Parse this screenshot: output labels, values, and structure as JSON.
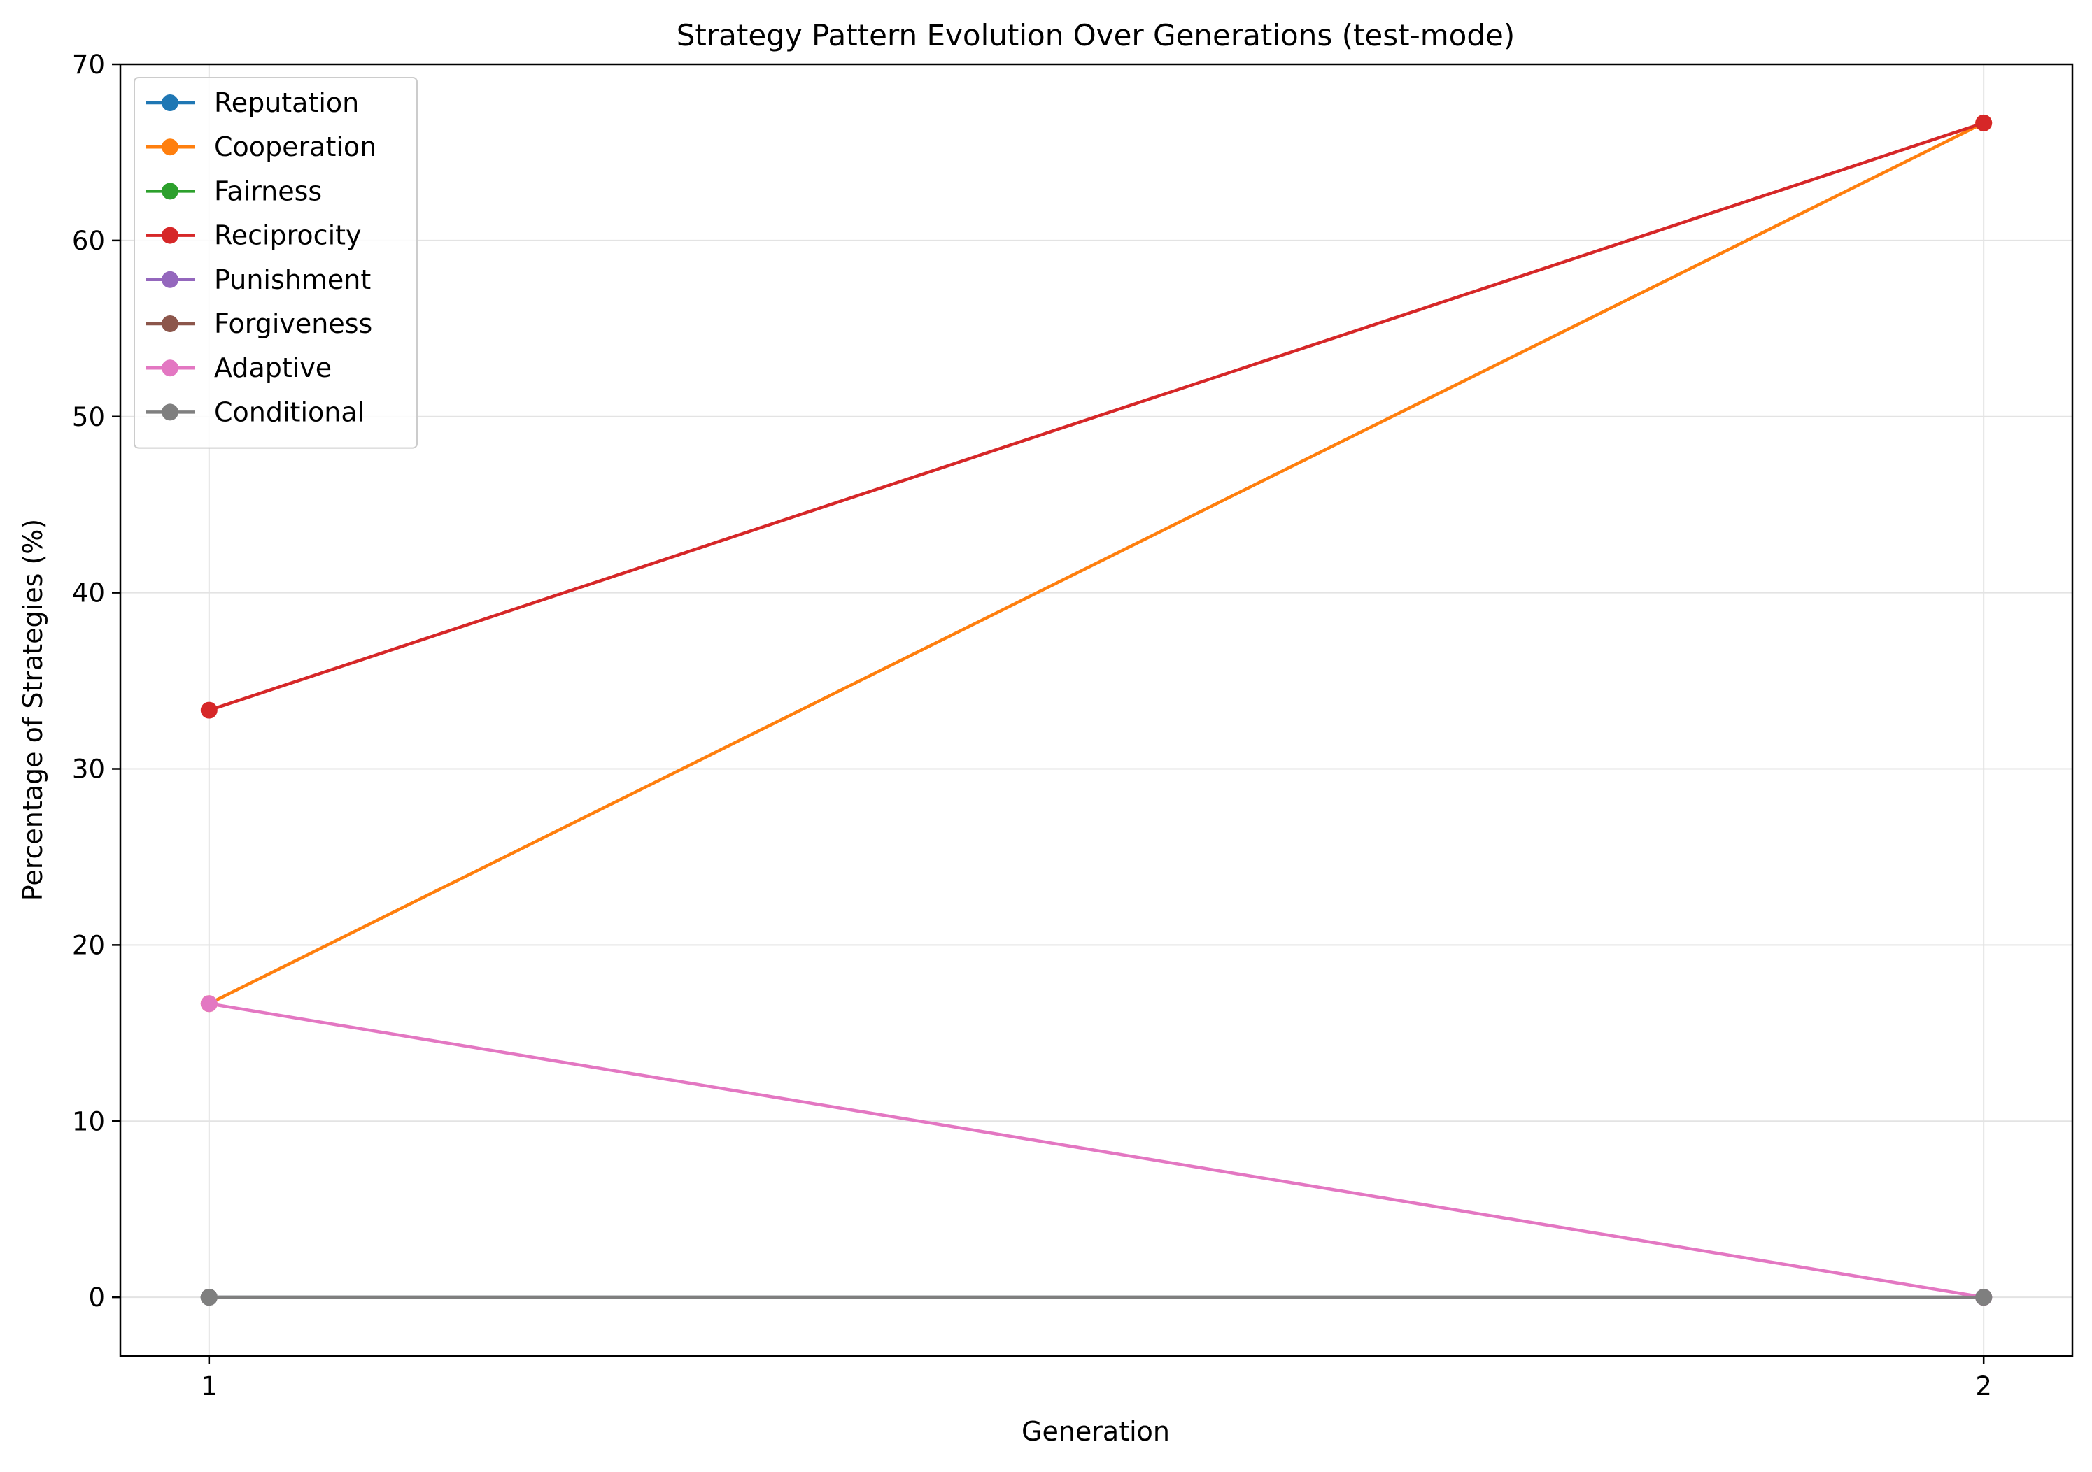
{
  "chart_data": {
    "type": "line",
    "title": "Strategy Pattern Evolution Over Generations (test-mode)",
    "xlabel": "Generation",
    "ylabel": "Percentage of Strategies (%)",
    "x": [
      1,
      2
    ],
    "xticks": [
      "1",
      "2"
    ],
    "xlim": [
      0.95,
      2.05
    ],
    "ylim": [
      -3.33,
      70
    ],
    "yticks": [
      0,
      10,
      20,
      30,
      40,
      50,
      60,
      70
    ],
    "grid": true,
    "legend_position": "upper-left",
    "series": [
      {
        "name": "Reputation",
        "color": "#1f77b4",
        "values": [
          0,
          0
        ]
      },
      {
        "name": "Cooperation",
        "color": "#ff7f0e",
        "values": [
          16.67,
          66.67
        ]
      },
      {
        "name": "Fairness",
        "color": "#2ca02c",
        "values": [
          0,
          0
        ]
      },
      {
        "name": "Reciprocity",
        "color": "#d62728",
        "values": [
          33.33,
          66.67
        ]
      },
      {
        "name": "Punishment",
        "color": "#9467bd",
        "values": [
          0,
          0
        ]
      },
      {
        "name": "Forgiveness",
        "color": "#8c564b",
        "values": [
          0,
          0
        ]
      },
      {
        "name": "Adaptive",
        "color": "#e377c2",
        "values": [
          16.67,
          0
        ]
      },
      {
        "name": "Conditional",
        "color": "#7f7f7f",
        "values": [
          0,
          0
        ]
      }
    ]
  }
}
